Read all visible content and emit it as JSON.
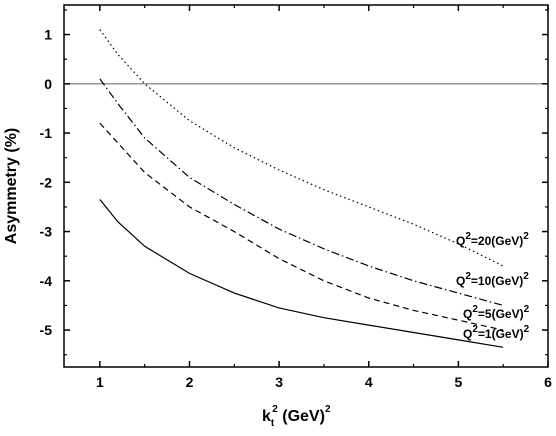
{
  "chart_data": {
    "type": "line",
    "xlabel": {
      "base": "k",
      "sub": "t",
      "sup": "2",
      "rest": " (GeV)",
      "rest_sup": "2"
    },
    "ylabel": "Asymmetry (%)",
    "xlim": [
      0.6,
      6.0
    ],
    "ylim": [
      -5.75,
      1.6
    ],
    "x_ticks": [
      1,
      2,
      3,
      4,
      5,
      6
    ],
    "x_tick_labels": [
      "1",
      "2",
      "3",
      "4",
      "5",
      "6"
    ],
    "y_ticks": [
      1,
      0,
      -1,
      -2,
      -3,
      -4,
      -5
    ],
    "y_tick_labels": [
      "1",
      "0",
      "-1",
      "-2",
      "-3",
      "-4",
      "-5"
    ],
    "reference_line_y": 0,
    "grid": false,
    "series": [
      {
        "name": "Q2=20",
        "label": {
          "base": "Q",
          "sup": "2",
          "mid": "=20(GeV)",
          "sup2": "2"
        },
        "style": "dotted",
        "x": [
          1.0,
          1.2,
          1.5,
          2.0,
          2.5,
          3.0,
          3.5,
          4.0,
          4.5,
          5.0,
          5.5
        ],
        "y": [
          1.1,
          0.6,
          0.0,
          -0.75,
          -1.3,
          -1.75,
          -2.15,
          -2.5,
          -2.85,
          -3.25,
          -3.7
        ]
      },
      {
        "name": "Q2=10",
        "label": {
          "base": "Q",
          "sup": "2",
          "mid": "=10(GeV)",
          "sup2": "2"
        },
        "style": "dashdot",
        "x": [
          1.0,
          1.2,
          1.5,
          2.0,
          2.5,
          3.0,
          3.5,
          4.0,
          4.5,
          5.0,
          5.5
        ],
        "y": [
          0.1,
          -0.4,
          -1.1,
          -1.9,
          -2.45,
          -2.95,
          -3.35,
          -3.7,
          -4.0,
          -4.25,
          -4.5
        ]
      },
      {
        "name": "Q2=5",
        "label": {
          "base": "Q",
          "sup": "2",
          "mid": "=5(GeV)",
          "sup2": "2"
        },
        "style": "dashed",
        "x": [
          1.0,
          1.2,
          1.5,
          2.0,
          2.5,
          3.0,
          3.5,
          4.0,
          4.5,
          5.0,
          5.5
        ],
        "y": [
          -0.8,
          -1.2,
          -1.8,
          -2.5,
          -3.0,
          -3.55,
          -4.0,
          -4.35,
          -4.6,
          -4.8,
          -5.0
        ]
      },
      {
        "name": "Q2=1",
        "label": {
          "base": "Q",
          "sup": "2",
          "mid": "=1(GeV)",
          "sup2": "2"
        },
        "style": "solid",
        "x": [
          1.0,
          1.2,
          1.5,
          2.0,
          2.5,
          3.0,
          3.5,
          4.0,
          4.5,
          5.0,
          5.5
        ],
        "y": [
          -2.35,
          -2.8,
          -3.3,
          -3.85,
          -4.25,
          -4.55,
          -4.75,
          -4.9,
          -5.05,
          -5.2,
          -5.35
        ]
      }
    ]
  }
}
